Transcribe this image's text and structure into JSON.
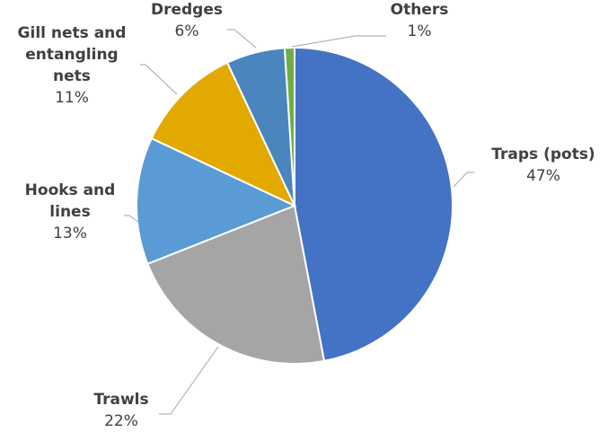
{
  "chart_data": {
    "type": "pie",
    "title": "",
    "slices": [
      {
        "name": "Traps (pots)",
        "name_lines": [
          "Traps (pots)"
        ],
        "value": 47,
        "label": "47%",
        "color": "#4472c4"
      },
      {
        "name": "Trawls",
        "name_lines": [
          "Trawls"
        ],
        "value": 22,
        "label": "22%",
        "color": "#a5a5a5"
      },
      {
        "name": "Hooks and lines",
        "name_lines": [
          "Hooks and",
          "lines"
        ],
        "value": 13,
        "label": "13%",
        "color": "#5b9bd5"
      },
      {
        "name": "Gill nets and entangling nets",
        "name_lines": [
          "Gill nets and",
          "entangling",
          "nets"
        ],
        "value": 11,
        "label": "11%",
        "color": "#e2a900"
      },
      {
        "name": "Dredges",
        "name_lines": [
          "Dredges"
        ],
        "value": 6,
        "label": "6%",
        "color": "#4a86bd"
      },
      {
        "name": "Others",
        "name_lines": [
          "Others"
        ],
        "value": 1,
        "label": "1%",
        "color": "#70ad47"
      }
    ],
    "legend": "none",
    "data_labels": "outside with leader lines"
  }
}
